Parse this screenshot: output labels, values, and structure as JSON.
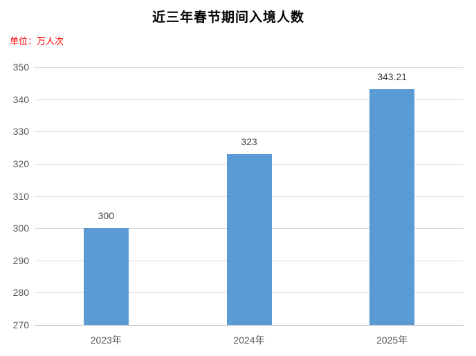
{
  "title": "近三年春节期间入境人数",
  "unit_label": "单位：万人次",
  "colors": {
    "bar": "#5b9bd5",
    "unit_text": "#ff0000",
    "gridline": "#d9d9d9",
    "axis_line": "#b7b7b7",
    "tick_text": "#595959",
    "data_label_text": "#404040",
    "title_text": "#000000",
    "background": "#ffffff"
  },
  "chart_data": {
    "type": "bar",
    "title": "近三年春节期间入境人数",
    "subtitle_unit": "单位：万人次",
    "categories": [
      "2023年",
      "2024年",
      "2025年"
    ],
    "values": [
      300,
      323,
      343.21
    ],
    "data_labels": [
      "300",
      "323",
      "343.21"
    ],
    "xlabel": "",
    "ylabel": "万人次",
    "ylim": [
      270,
      350
    ],
    "ytick_interval": 10,
    "yticks": [
      350,
      340,
      330,
      320,
      310,
      300,
      290,
      280,
      270
    ],
    "grid": true,
    "legend": false,
    "bar_color": "#5b9bd5"
  }
}
